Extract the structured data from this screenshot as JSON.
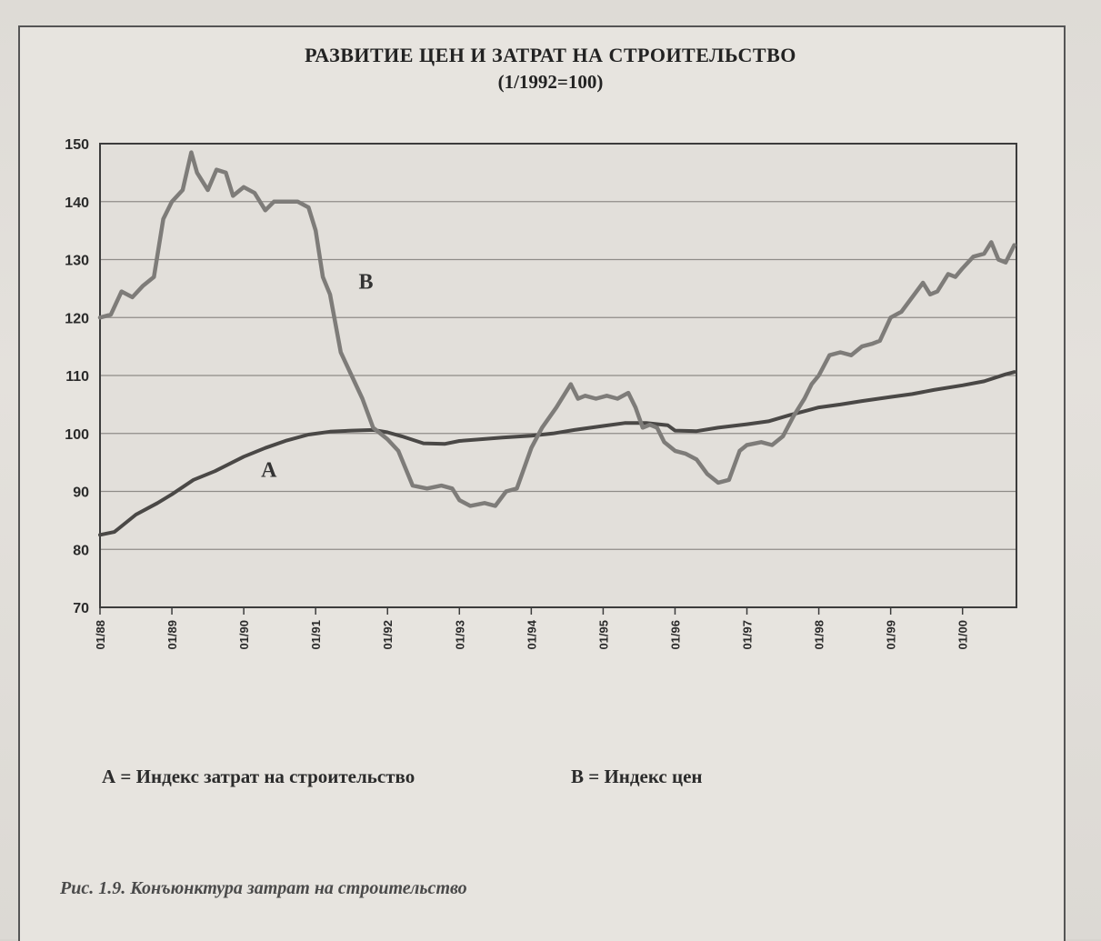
{
  "chart_data": {
    "type": "line",
    "title": "РАЗВИТИЕ ЦЕН И ЗАТРАТ НА СТРОИТЕЛЬСТВО",
    "subtitle": "(1/1992=100)",
    "xlabel": "",
    "ylabel": "",
    "ylim": [
      70,
      150
    ],
    "yticks": [
      70,
      80,
      90,
      100,
      110,
      120,
      130,
      140,
      150
    ],
    "xlim": [
      1988.0,
      2000.75
    ],
    "xticks": [
      {
        "pos": 1988,
        "label": "01/88"
      },
      {
        "pos": 1989,
        "label": "01/89"
      },
      {
        "pos": 1990,
        "label": "01/90"
      },
      {
        "pos": 1991,
        "label": "01/91"
      },
      {
        "pos": 1992,
        "label": "01/92"
      },
      {
        "pos": 1993,
        "label": "01/93"
      },
      {
        "pos": 1994,
        "label": "01/94"
      },
      {
        "pos": 1995,
        "label": "01/95"
      },
      {
        "pos": 1996,
        "label": "01/96"
      },
      {
        "pos": 1997,
        "label": "01/97"
      },
      {
        "pos": 1998,
        "label": "01/98"
      },
      {
        "pos": 1999,
        "label": "01/99"
      },
      {
        "pos": 2000,
        "label": "01/00"
      }
    ],
    "grid": "horizontal",
    "series": [
      {
        "name": "A",
        "color": "#4a4846",
        "x": [
          1988.0,
          1988.2,
          1988.5,
          1988.8,
          1989.0,
          1989.3,
          1989.6,
          1990.0,
          1990.3,
          1990.6,
          1990.9,
          1991.2,
          1991.5,
          1991.8,
          1992.0,
          1992.2,
          1992.5,
          1992.8,
          1993.0,
          1993.3,
          1993.6,
          1994.0,
          1994.3,
          1994.6,
          1995.0,
          1995.3,
          1995.6,
          1995.9,
          1996.0,
          1996.3,
          1996.6,
          1997.0,
          1997.3,
          1997.6,
          1998.0,
          1998.3,
          1998.6,
          1999.0,
          1999.3,
          1999.6,
          2000.0,
          2000.3,
          2000.6,
          2000.72
        ],
        "y": [
          82.5,
          83.0,
          86.0,
          88.0,
          89.5,
          92.0,
          93.5,
          96.0,
          97.5,
          98.8,
          99.8,
          100.3,
          100.5,
          100.6,
          100.2,
          99.5,
          98.3,
          98.2,
          98.7,
          99.0,
          99.3,
          99.6,
          100.0,
          100.6,
          101.3,
          101.8,
          101.8,
          101.4,
          100.5,
          100.4,
          101.0,
          101.6,
          102.1,
          103.2,
          104.5,
          105.0,
          105.6,
          106.3,
          106.8,
          107.5,
          108.3,
          109.0,
          110.2,
          110.6
        ]
      },
      {
        "name": "B",
        "color": "#7e7c79",
        "x": [
          1988.0,
          1988.15,
          1988.3,
          1988.45,
          1988.6,
          1988.75,
          1988.88,
          1989.0,
          1989.15,
          1989.27,
          1989.35,
          1989.5,
          1989.62,
          1989.75,
          1989.85,
          1990.0,
          1990.15,
          1990.3,
          1990.42,
          1990.55,
          1990.75,
          1990.9,
          1991.0,
          1991.1,
          1991.2,
          1991.35,
          1991.5,
          1991.65,
          1991.8,
          1992.0,
          1992.15,
          1992.35,
          1992.55,
          1992.75,
          1992.9,
          1993.0,
          1993.15,
          1993.35,
          1993.5,
          1993.65,
          1993.8,
          1994.0,
          1994.15,
          1994.35,
          1994.55,
          1994.65,
          1994.75,
          1994.9,
          1995.05,
          1995.2,
          1995.35,
          1995.45,
          1995.55,
          1995.65,
          1995.75,
          1995.85,
          1996.0,
          1996.15,
          1996.3,
          1996.45,
          1996.6,
          1996.75,
          1996.9,
          1997.0,
          1997.2,
          1997.35,
          1997.5,
          1997.65,
          1997.8,
          1997.9,
          1998.0,
          1998.15,
          1998.3,
          1998.45,
          1998.6,
          1998.75,
          1998.85,
          1999.0,
          1999.15,
          1999.3,
          1999.45,
          1999.55,
          1999.65,
          1999.8,
          1999.9,
          2000.0,
          2000.15,
          2000.3,
          2000.4,
          2000.5,
          2000.6,
          2000.72
        ],
        "y": [
          120.0,
          120.5,
          124.5,
          123.5,
          125.5,
          127.0,
          137.0,
          140.0,
          142.0,
          148.5,
          145.0,
          142.0,
          145.5,
          145.0,
          141.0,
          142.5,
          141.5,
          138.5,
          140.0,
          140.0,
          140.0,
          139.0,
          135.0,
          127.0,
          124.0,
          114.0,
          110.0,
          106.0,
          101.0,
          99.0,
          97.0,
          91.0,
          90.5,
          91.0,
          90.5,
          88.5,
          87.5,
          88.0,
          87.5,
          90.0,
          90.5,
          97.5,
          101.0,
          104.5,
          108.5,
          106.0,
          106.5,
          106.0,
          106.5,
          106.0,
          107.0,
          104.5,
          101.0,
          101.5,
          101.0,
          98.5,
          97.0,
          96.5,
          95.5,
          93.0,
          91.5,
          92.0,
          97.0,
          98.0,
          98.5,
          98.0,
          99.5,
          103.0,
          106.0,
          108.5,
          110.0,
          113.5,
          114.0,
          113.5,
          115.0,
          115.5,
          116.0,
          120.0,
          121.0,
          123.5,
          126.0,
          124.0,
          124.5,
          127.5,
          127.0,
          128.5,
          130.5,
          131.0,
          133.0,
          130.0,
          129.5,
          132.5
        ]
      }
    ],
    "annotations": [
      {
        "text": "A",
        "x": 1990.35,
        "y": 92.5
      },
      {
        "text": "B",
        "x": 1991.7,
        "y": 125.0
      }
    ],
    "legend": {
      "placement": "bottom",
      "items": [
        {
          "key": "А",
          "text": "Индекс затрат на строительство"
        },
        {
          "key": "В",
          "text": "Индекс цен"
        }
      ]
    }
  },
  "legend_a_text": "А = Индекс затрат на строительство",
  "legend_b_text": "В = Индекс цен",
  "caption": "Рис. 1.9. Конъюнктура затрат на строительство"
}
